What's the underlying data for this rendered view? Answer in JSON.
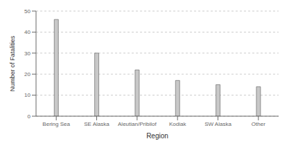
{
  "chart_data": {
    "type": "bar",
    "categories": [
      "Bering Sea",
      "SE Alaska",
      "Aleutian/Pribilof",
      "Kodiak",
      "SW Alaska",
      "Other"
    ],
    "values": [
      46,
      30,
      22,
      17,
      15,
      14
    ],
    "color": "#c8c8c8",
    "xlabel": "Region",
    "ylabel": "Number of Fatalities",
    "ylim": [
      0,
      50
    ],
    "yticks": [
      0,
      10,
      20,
      30,
      40,
      50
    ],
    "grid": true
  }
}
